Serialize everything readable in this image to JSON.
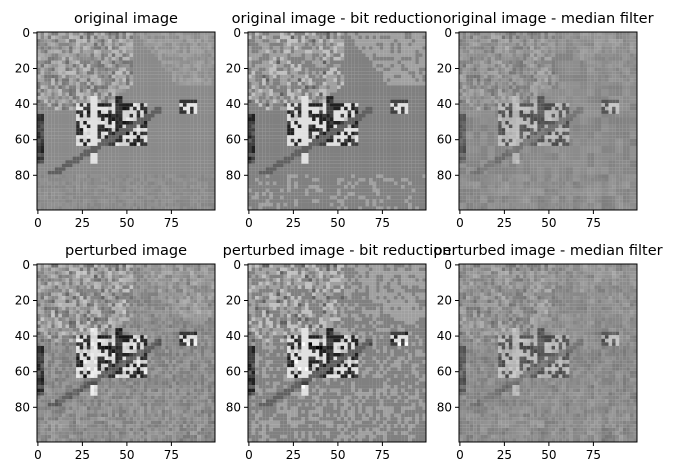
{
  "figure": {
    "colors": {
      "background": "#ffffff",
      "axis": "#000000",
      "image_mid_gray": "#8c8c8c"
    },
    "colormap": "gray"
  },
  "chart_data": [
    {
      "type": "heatmap",
      "title": "original image",
      "image_size": [
        100,
        100
      ],
      "xticks": [
        0,
        25,
        50,
        75
      ],
      "yticks": [
        0,
        20,
        40,
        60,
        80
      ],
      "xlim": [
        -0.5,
        99.5
      ],
      "ylim": [
        99.5,
        -0.5
      ],
      "variant": "original",
      "processing": "none"
    },
    {
      "type": "heatmap",
      "title": "original image - bit reduction",
      "image_size": [
        100,
        100
      ],
      "xticks": [
        0,
        25,
        50,
        75
      ],
      "yticks": [
        0,
        20,
        40,
        60,
        80
      ],
      "xlim": [
        -0.5,
        99.5
      ],
      "ylim": [
        99.5,
        -0.5
      ],
      "variant": "original",
      "processing": "bit reduction"
    },
    {
      "type": "heatmap",
      "title": "original image - median filter",
      "image_size": [
        100,
        100
      ],
      "xticks": [
        0,
        25,
        50,
        75
      ],
      "yticks": [
        0,
        20,
        40,
        60,
        80
      ],
      "xlim": [
        -0.5,
        99.5
      ],
      "ylim": [
        99.5,
        -0.5
      ],
      "variant": "original",
      "processing": "median filter"
    },
    {
      "type": "heatmap",
      "title": "perturbed image",
      "image_size": [
        100,
        100
      ],
      "xticks": [
        0,
        25,
        50,
        75
      ],
      "yticks": [
        0,
        20,
        40,
        60,
        80
      ],
      "xlim": [
        -0.5,
        99.5
      ],
      "ylim": [
        99.5,
        -0.5
      ],
      "variant": "perturbed",
      "processing": "none"
    },
    {
      "type": "heatmap",
      "title": "perturbed image - bit reduction",
      "image_size": [
        100,
        100
      ],
      "xticks": [
        0,
        25,
        50,
        75
      ],
      "yticks": [
        0,
        20,
        40,
        60,
        80
      ],
      "xlim": [
        -0.5,
        99.5
      ],
      "ylim": [
        99.5,
        -0.5
      ],
      "variant": "perturbed",
      "processing": "bit reduction"
    },
    {
      "type": "heatmap",
      "title": "perturbed image - median filter",
      "image_size": [
        100,
        100
      ],
      "xticks": [
        0,
        25,
        50,
        75
      ],
      "yticks": [
        0,
        20,
        40,
        60,
        80
      ],
      "xlim": [
        -0.5,
        99.5
      ],
      "ylim": [
        99.5,
        -0.5
      ],
      "variant": "perturbed",
      "processing": "median filter"
    }
  ]
}
